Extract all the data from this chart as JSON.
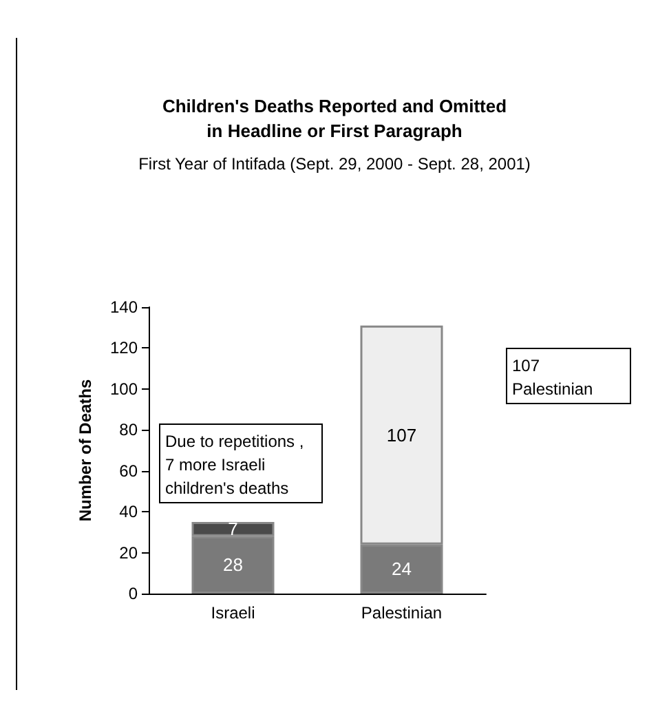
{
  "chart_data": {
    "type": "bar",
    "title": "Children's Deaths Reported and Omitted\nin Headline or First Paragraph",
    "subtitle": "First Year of Intifada (Sept. 29, 2000 - Sept. 28, 2001)",
    "ylabel": "Number of Deaths",
    "categories": [
      "Israeli",
      "Palestinian"
    ],
    "stacked": true,
    "series": [
      {
        "colors": [
          "#7a7a7a",
          "#7a7a7a"
        ],
        "values": [
          28,
          24
        ]
      },
      {
        "colors": [
          "#4a4a4a",
          "#eeeeee"
        ],
        "values": [
          7,
          107
        ]
      }
    ],
    "data_labels": true,
    "ylim": [
      0,
      140
    ],
    "yticks": [
      0,
      20,
      40,
      60,
      80,
      100,
      120,
      140
    ],
    "grid": false,
    "annotations": [
      "Due to repetitions ,\n7 more Israeli\nchildren's deaths",
      "107\nPalestinian"
    ]
  }
}
